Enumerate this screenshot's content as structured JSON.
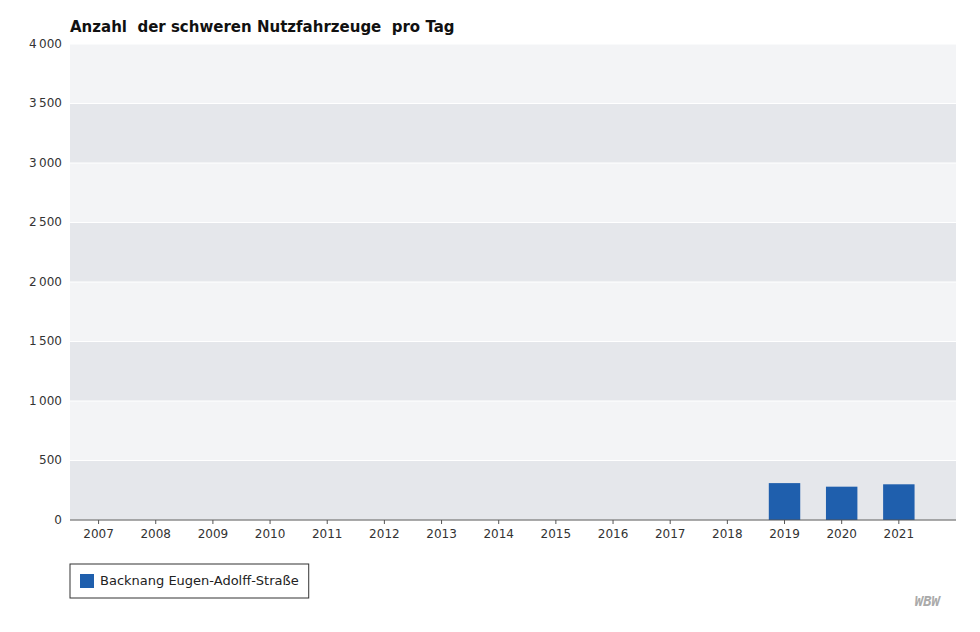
{
  "chart_data": {
    "type": "bar",
    "title": "Anzahl  der schweren Nutzfahrzeuge  pro Tag",
    "x": [
      2007,
      2008,
      2009,
      2010,
      2011,
      2012,
      2013,
      2014,
      2015,
      2016,
      2017,
      2018,
      2019,
      2020,
      2021
    ],
    "xlim": [
      2006.5,
      2022.0
    ],
    "xticks": [
      2007,
      2008,
      2009,
      2010,
      2011,
      2012,
      2013,
      2014,
      2015,
      2016,
      2017,
      2018,
      2019,
      2020,
      2021
    ],
    "series": [
      {
        "name": "Backnang Eugen-Adolff-Straße",
        "color": "#1F5FAD",
        "values": [
          0,
          0,
          0,
          0,
          0,
          0,
          0,
          0,
          0,
          0,
          0,
          0,
          310,
          280,
          300
        ]
      }
    ],
    "ylim": [
      0,
      4000
    ],
    "yticks": [
      0,
      500,
      {
        "value": 1000,
        "label": "1 000"
      },
      {
        "value": 1500,
        "label": "1 500"
      },
      {
        "value": 2000,
        "label": "2 000"
      },
      {
        "value": 2500,
        "label": "2 500"
      },
      {
        "value": 3000,
        "label": "3 000"
      },
      {
        "value": 3500,
        "label": "3 500"
      },
      {
        "value": 4000,
        "label": "4 000"
      }
    ],
    "grid": true,
    "legend": "bottom",
    "annotations": [
      "WBW"
    ]
  }
}
